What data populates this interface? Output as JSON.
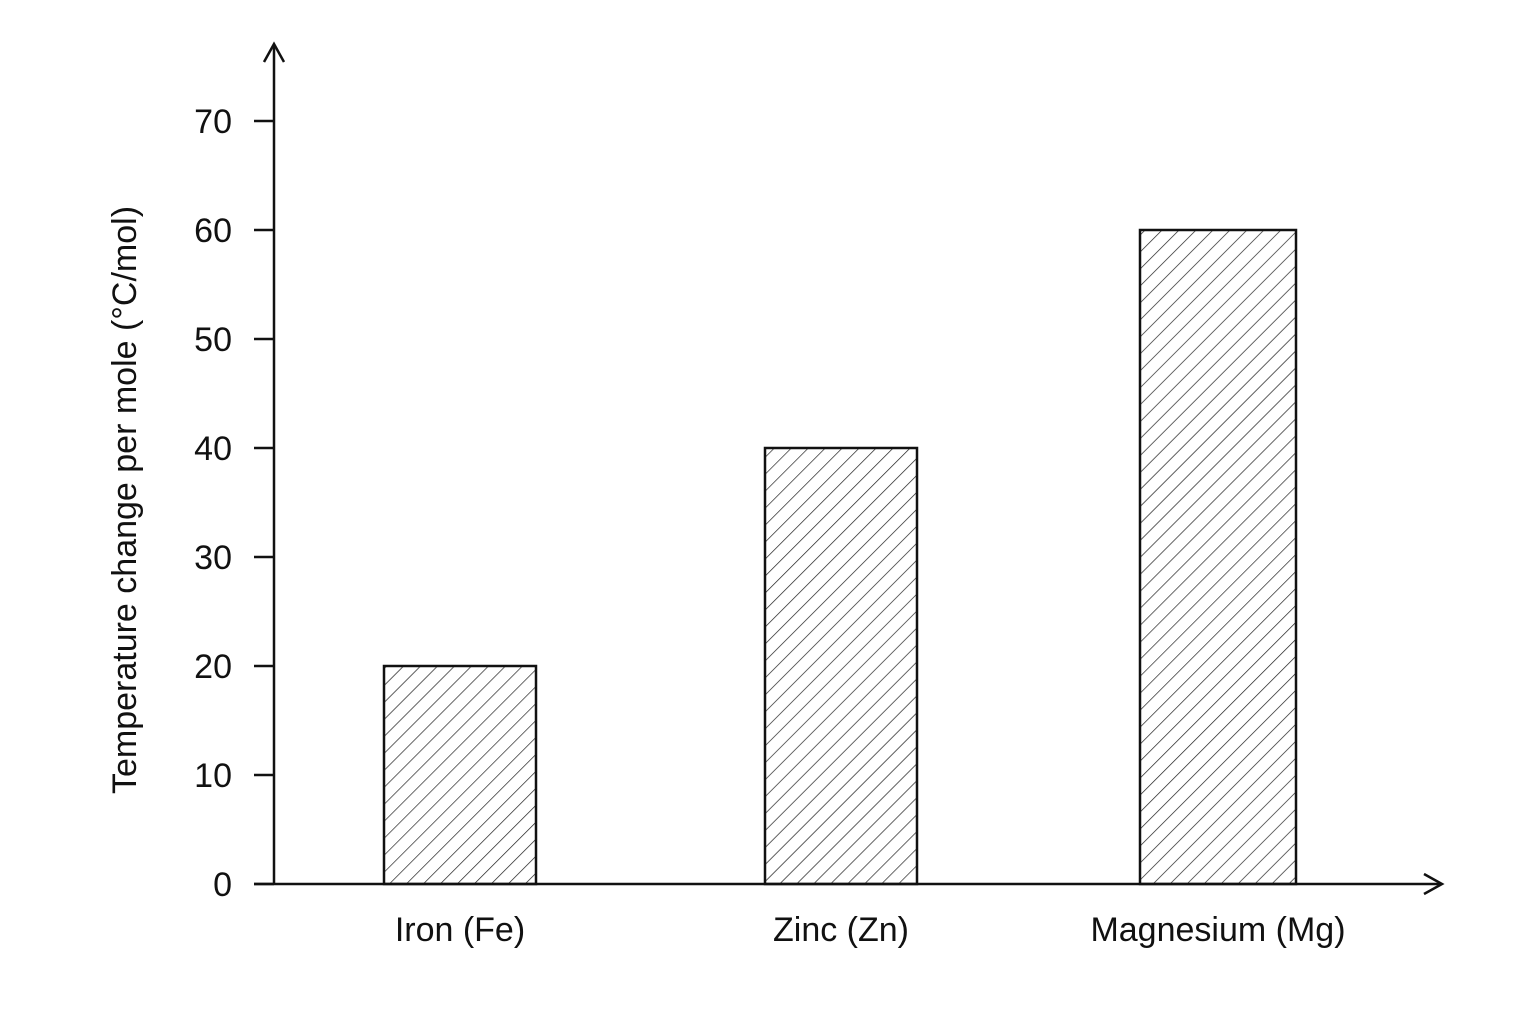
{
  "chart_data": {
    "type": "bar",
    "title": "",
    "xlabel": "",
    "ylabel": "Temperature change per mole (°C/mol)",
    "categories": [
      "Iron (Fe)",
      "Zinc (Zn)",
      "Magnesium (Mg)"
    ],
    "values": [
      20,
      40,
      60
    ],
    "ylim": [
      0,
      70
    ],
    "yticks": [
      0,
      10,
      20,
      30,
      40,
      50,
      60,
      70
    ],
    "grid": false,
    "bar_fill": "diagonal hatch",
    "colors": {
      "bar_stroke": "#111111",
      "hatch": "#222222",
      "axis": "#111111",
      "background": "#ffffff"
    }
  }
}
